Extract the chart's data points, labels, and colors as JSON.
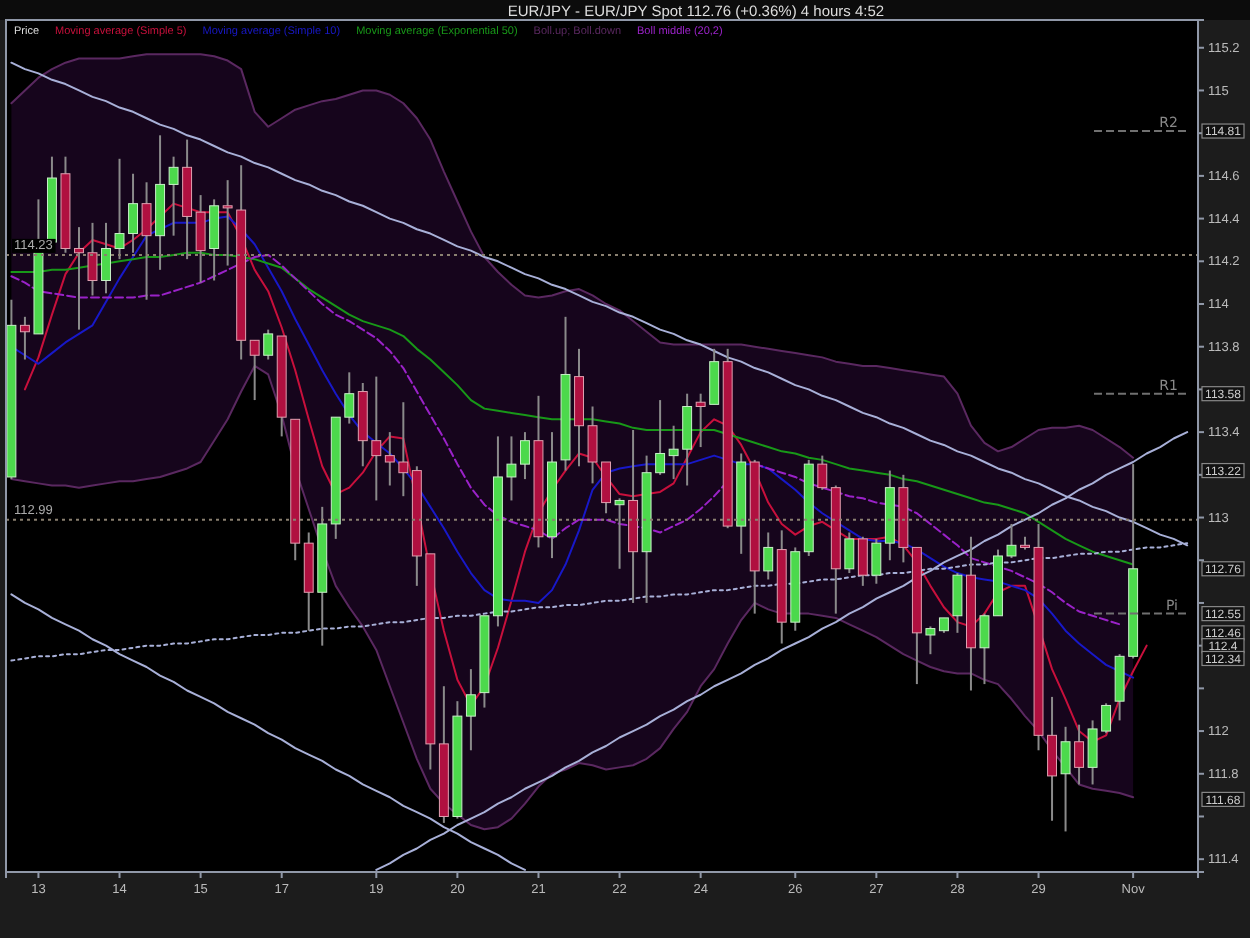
{
  "chart_data": {
    "type": "candlestick",
    "title": "EUR/JPY - EUR/JPY Spot    112.76 (+0.36%)    4 hours  4:52",
    "legend": "top left",
    "marker": "none",
    "categories": [
      null,
      null,
      "13",
      null,
      null,
      null,
      null,
      null,
      "14",
      null,
      null,
      null,
      null,
      null,
      "15",
      null,
      null,
      null,
      null,
      null,
      "17",
      null,
      null,
      null,
      null,
      null,
      null,
      "19",
      null,
      null,
      null,
      null,
      null,
      "20",
      null,
      null,
      null,
      null,
      null,
      "21",
      null,
      null,
      null,
      null,
      null,
      "22",
      null,
      null,
      null,
      null,
      null,
      "24",
      null,
      null,
      null,
      null,
      null,
      null,
      "26",
      null,
      null,
      null,
      null,
      null,
      "27",
      null,
      null,
      null,
      null,
      null,
      "28",
      null,
      null,
      null,
      null,
      null,
      "29",
      null,
      null,
      null,
      null,
      null,
      null,
      "Nov",
      null,
      null,
      null,
      null
    ],
    "ylim": [
      111.34,
      115.33
    ],
    "yticks": [
      115.2,
      115,
      {
        "value": 114.8,
        "label": null
      },
      114.6,
      114.4,
      114.2,
      114,
      113.8,
      {
        "value": 113.6,
        "label": null
      },
      113.4,
      {
        "value": 113.2,
        "label": null
      },
      113,
      {
        "value": 112.8,
        "label": null
      },
      {
        "value": 112.6,
        "label": null
      },
      {
        "value": 112.4,
        "label": null
      },
      {
        "value": 112.2,
        "label": null
      },
      112,
      111.8,
      {
        "value": 111.6,
        "label": null
      },
      111.4
    ],
    "ref_lines": [
      {
        "axis": "y",
        "value": 114.23,
        "label": "114.23",
        "line_style": "dotted",
        "color": "#8a8070"
      },
      {
        "axis": "y",
        "value": 112.99,
        "label": "112.99",
        "line_style": "dotted",
        "color": "#8a8070"
      },
      {
        "axis": "y",
        "value": 114.81,
        "label": "R2",
        "line_style": "dashed",
        "color": "#707070"
      },
      {
        "axis": "y",
        "value": 113.58,
        "label": "R1",
        "line_style": "dashed",
        "color": "#707070"
      },
      {
        "axis": "y",
        "value": 112.55,
        "label": "Pi",
        "line_style": "dashed",
        "color": "#707070"
      }
    ],
    "annotations": [
      {
        "text": "114.81",
        "y": 114.81
      },
      {
        "text": "113.58",
        "y": 113.58
      },
      {
        "text": "113.22",
        "y": 113.22
      },
      {
        "text": "112.76",
        "y": 112.76
      },
      {
        "text": "112.55",
        "y": 112.55
      },
      {
        "text": "112.46",
        "y": 112.46
      },
      {
        "text": "112.4",
        "y": 112.4
      },
      {
        "text": "112.34",
        "y": 112.34
      },
      {
        "text": "111.68",
        "y": 111.68
      }
    ],
    "series": [
      {
        "type": "candlestick",
        "name": "Price",
        "ohlc": [
          [
            113.19,
            114.02,
            113.18,
            113.9
          ],
          [
            113.9,
            113.94,
            113.74,
            113.87
          ],
          [
            113.86,
            114.49,
            113.86,
            114.29
          ],
          [
            114.29,
            114.69,
            114.28,
            114.59
          ],
          [
            114.61,
            114.69,
            114.24,
            114.26
          ],
          [
            114.26,
            114.36,
            113.88,
            114.24
          ],
          [
            114.24,
            114.38,
            114.04,
            114.11
          ],
          [
            114.11,
            114.38,
            114.05,
            114.26
          ],
          [
            114.26,
            114.68,
            114.21,
            114.33
          ],
          [
            114.33,
            114.61,
            114.24,
            114.47
          ],
          [
            114.47,
            114.57,
            114.02,
            114.32
          ],
          [
            114.32,
            114.79,
            114.16,
            114.56
          ],
          [
            114.56,
            114.69,
            114.32,
            114.64
          ],
          [
            114.64,
            114.77,
            114.21,
            114.41
          ],
          [
            114.43,
            114.51,
            114.1,
            114.25
          ],
          [
            114.26,
            114.49,
            114.11,
            114.46
          ],
          [
            114.46,
            114.58,
            114.18,
            114.45
          ],
          [
            114.44,
            114.65,
            113.74,
            113.83
          ],
          [
            113.83,
            113.83,
            113.55,
            113.76
          ],
          [
            113.76,
            113.88,
            113.74,
            113.86
          ],
          [
            113.85,
            113.85,
            113.38,
            113.47
          ],
          [
            113.46,
            113.46,
            112.8,
            112.88
          ],
          [
            112.88,
            112.93,
            112.47,
            112.65
          ],
          [
            112.65,
            113.05,
            112.4,
            112.97
          ],
          [
            112.97,
            113.47,
            112.9,
            113.47
          ],
          [
            113.47,
            113.68,
            113.44,
            113.58
          ],
          [
            113.59,
            113.63,
            113.24,
            113.36
          ],
          [
            113.36,
            113.66,
            113.08,
            113.29
          ],
          [
            113.29,
            113.4,
            113.15,
            113.26
          ],
          [
            113.26,
            113.54,
            113.1,
            113.21
          ],
          [
            113.22,
            113.24,
            112.68,
            112.82
          ],
          [
            112.83,
            112.83,
            111.82,
            111.94
          ],
          [
            111.94,
            112.21,
            111.57,
            111.6
          ],
          [
            111.6,
            112.14,
            111.59,
            112.07
          ],
          [
            112.07,
            112.29,
            111.91,
            112.17
          ],
          [
            112.18,
            112.54,
            112.11,
            112.54
          ],
          [
            112.54,
            113.38,
            112.49,
            113.19
          ],
          [
            113.19,
            113.38,
            113.08,
            113.25
          ],
          [
            113.25,
            113.4,
            113.18,
            113.36
          ],
          [
            113.36,
            113.57,
            112.86,
            112.91
          ],
          [
            112.91,
            113.4,
            112.81,
            113.26
          ],
          [
            113.27,
            113.94,
            113.22,
            113.67
          ],
          [
            113.66,
            113.79,
            113.24,
            113.43
          ],
          [
            113.43,
            113.52,
            113.16,
            113.26
          ],
          [
            113.26,
            113.26,
            113.02,
            113.07
          ],
          [
            113.06,
            113.09,
            112.76,
            113.08
          ],
          [
            113.08,
            113.41,
            112.6,
            112.84
          ],
          [
            112.84,
            113.29,
            112.6,
            113.21
          ],
          [
            113.21,
            113.55,
            113.2,
            113.3
          ],
          [
            113.29,
            113.43,
            113.18,
            113.32
          ],
          [
            113.32,
            113.58,
            113.15,
            113.52
          ],
          [
            113.54,
            113.58,
            113.33,
            113.52
          ],
          [
            113.53,
            113.79,
            113.53,
            113.73
          ],
          [
            113.73,
            113.79,
            112.95,
            112.96
          ],
          [
            112.96,
            113.3,
            112.83,
            113.26
          ],
          [
            113.26,
            113.27,
            112.55,
            112.75
          ],
          [
            112.75,
            112.93,
            112.71,
            112.86
          ],
          [
            112.85,
            112.94,
            112.41,
            112.51
          ],
          [
            112.51,
            112.86,
            112.47,
            112.84
          ],
          [
            112.84,
            113.27,
            112.82,
            113.25
          ],
          [
            113.25,
            113.29,
            113.13,
            113.14
          ],
          [
            113.14,
            113.15,
            112.55,
            112.76
          ],
          [
            112.76,
            112.93,
            112.74,
            112.9
          ],
          [
            112.9,
            112.91,
            112.68,
            112.73
          ],
          [
            112.73,
            112.9,
            112.69,
            112.88
          ],
          [
            112.88,
            113.22,
            112.8,
            113.14
          ],
          [
            113.14,
            113.2,
            112.79,
            112.86
          ],
          [
            112.86,
            112.86,
            112.22,
            112.46
          ],
          [
            112.45,
            112.49,
            112.36,
            112.48
          ],
          [
            112.47,
            112.53,
            112.46,
            112.53
          ],
          [
            112.54,
            112.74,
            112.46,
            112.73
          ],
          [
            112.73,
            112.91,
            112.19,
            112.39
          ],
          [
            112.39,
            112.55,
            112.22,
            112.54
          ],
          [
            112.54,
            112.85,
            112.54,
            112.82
          ],
          [
            112.82,
            112.97,
            112.81,
            112.87
          ],
          [
            112.87,
            112.91,
            112.85,
            112.86
          ],
          [
            112.86,
            112.97,
            111.91,
            111.98
          ],
          [
            111.98,
            112.16,
            111.58,
            111.79
          ],
          [
            111.8,
            112.02,
            111.53,
            111.95
          ],
          [
            111.95,
            112.03,
            111.75,
            111.83
          ],
          [
            111.83,
            112.05,
            111.75,
            112.01
          ],
          [
            112.0,
            112.13,
            111.99,
            112.12
          ],
          [
            112.14,
            112.36,
            112.05,
            112.35
          ],
          [
            112.35,
            113.25,
            112.34,
            112.76
          ],
          null,
          null,
          null,
          null
        ]
      },
      {
        "type": "line",
        "name": "Moving average (Simple 5)",
        "color": "#c8103c",
        "line_style": "solid",
        "values": [
          null,
          113.6,
          113.75,
          113.95,
          114.14,
          114.24,
          114.3,
          114.28,
          114.26,
          114.3,
          114.35,
          114.41,
          114.47,
          114.45,
          114.43,
          114.43,
          114.43,
          114.31,
          114.16,
          114.06,
          113.89,
          113.69,
          113.46,
          113.24,
          113.11,
          113.14,
          113.21,
          113.31,
          113.38,
          113.37,
          113.07,
          112.75,
          112.47,
          112.24,
          112.12,
          112.21,
          112.39,
          112.61,
          112.84,
          113.02,
          113.13,
          113.22,
          113.3,
          113.28,
          113.19,
          113.11,
          113.1,
          113.11,
          113.12,
          113.16,
          113.28,
          113.4,
          113.46,
          113.43,
          113.34,
          113.22,
          113.07,
          112.97,
          112.92,
          112.96,
          112.98,
          112.94,
          112.9,
          112.9,
          112.9,
          112.91,
          112.87,
          112.79,
          112.68,
          112.58,
          112.51,
          112.49,
          112.55,
          112.65,
          112.68,
          112.68,
          112.49,
          112.29,
          112.15,
          112.0,
          111.95,
          111.98,
          112.15,
          112.28,
          112.4,
          null,
          null,
          null
        ]
      },
      {
        "type": "line",
        "name": "Moving average (Simple 10)",
        "color": "#1818c8",
        "line_style": "solid",
        "values": [
          113.8,
          113.76,
          113.72,
          113.77,
          113.82,
          113.86,
          113.9,
          114.01,
          114.12,
          114.22,
          114.32,
          114.35,
          114.38,
          114.38,
          114.38,
          114.4,
          114.41,
          114.35,
          114.28,
          114.17,
          114.06,
          113.93,
          113.81,
          113.69,
          113.58,
          113.48,
          113.4,
          113.35,
          113.3,
          113.23,
          113.15,
          113.05,
          112.95,
          112.84,
          112.74,
          112.66,
          112.62,
          112.61,
          112.61,
          112.6,
          112.66,
          112.78,
          112.94,
          113.13,
          113.21,
          113.23,
          113.24,
          113.25,
          113.25,
          113.25,
          113.25,
          113.27,
          113.29,
          113.27,
          113.25,
          113.25,
          113.23,
          113.18,
          113.13,
          113.07,
          113.02,
          112.98,
          112.94,
          112.9,
          112.89,
          112.89,
          112.88,
          112.85,
          112.81,
          112.77,
          112.74,
          112.72,
          112.71,
          112.7,
          112.68,
          112.66,
          112.62,
          112.55,
          112.47,
          112.41,
          112.36,
          112.31,
          112.28,
          112.25,
          null,
          null,
          null,
          null
        ]
      },
      {
        "type": "line",
        "name": "Moving average (Exponential 50)",
        "color": "#189818",
        "line_style": "solid",
        "values": [
          114.15,
          114.15,
          114.15,
          114.16,
          114.16,
          114.17,
          114.18,
          114.19,
          114.2,
          114.21,
          114.22,
          114.22,
          114.23,
          114.24,
          114.24,
          114.23,
          114.23,
          114.22,
          114.21,
          114.19,
          114.17,
          114.12,
          114.07,
          114.03,
          113.99,
          113.95,
          113.92,
          113.9,
          113.88,
          113.85,
          113.79,
          113.74,
          113.68,
          113.62,
          113.55,
          113.51,
          113.5,
          113.49,
          113.48,
          113.47,
          113.46,
          113.46,
          113.46,
          113.46,
          113.45,
          113.44,
          113.42,
          113.41,
          113.41,
          113.41,
          113.41,
          113.41,
          113.41,
          113.39,
          113.37,
          113.35,
          113.33,
          113.31,
          113.3,
          113.28,
          113.27,
          113.25,
          113.23,
          113.22,
          113.21,
          113.2,
          113.18,
          113.17,
          113.15,
          113.13,
          113.11,
          113.09,
          113.07,
          113.06,
          113.04,
          113.02,
          112.98,
          112.94,
          112.9,
          112.87,
          112.84,
          112.82,
          112.8,
          112.78,
          null,
          null,
          null,
          null
        ]
      },
      {
        "type": "line",
        "name": "Boll.up; Boll.down",
        "color": "#5a2860",
        "line_style": "solid",
        "values": [
          114.94,
          115.0,
          115.06,
          115.1,
          115.13,
          115.15,
          115.15,
          115.15,
          115.15,
          115.16,
          115.17,
          115.17,
          115.17,
          115.17,
          115.17,
          115.16,
          115.14,
          115.1,
          114.9,
          114.83,
          114.87,
          114.91,
          114.93,
          114.95,
          114.96,
          114.98,
          115.0,
          115.0,
          114.98,
          114.94,
          114.87,
          114.77,
          114.62,
          114.48,
          114.34,
          114.22,
          114.15,
          114.09,
          114.04,
          114.03,
          114.04,
          114.06,
          114.07,
          114.04,
          114.0,
          113.97,
          113.92,
          113.87,
          113.82,
          113.81,
          113.81,
          113.81,
          113.81,
          113.81,
          113.81,
          113.8,
          113.79,
          113.78,
          113.77,
          113.76,
          113.75,
          113.73,
          113.72,
          113.71,
          113.71,
          113.7,
          113.69,
          113.68,
          113.67,
          113.66,
          113.58,
          113.43,
          113.35,
          113.31,
          113.33,
          113.37,
          113.41,
          113.42,
          113.42,
          113.43,
          113.41,
          113.37,
          113.33,
          113.28,
          null,
          null,
          null,
          null
        ],
        "marker": "none"
      },
      {
        "type": "line",
        "color": "#5a2860",
        "line_style": "solid",
        "values": [
          113.18,
          113.17,
          113.16,
          113.15,
          113.15,
          113.14,
          113.15,
          113.16,
          113.17,
          113.17,
          113.18,
          113.19,
          113.21,
          113.23,
          113.26,
          113.36,
          113.46,
          113.59,
          113.71,
          113.67,
          113.48,
          113.23,
          113.04,
          112.85,
          112.68,
          112.58,
          112.49,
          112.38,
          112.21,
          112.04,
          111.87,
          111.73,
          111.66,
          111.61,
          111.56,
          111.54,
          111.55,
          111.59,
          111.66,
          111.74,
          111.8,
          111.82,
          111.85,
          111.84,
          111.82,
          111.83,
          111.84,
          111.87,
          111.92,
          112.01,
          112.09,
          112.21,
          112.29,
          112.41,
          112.52,
          112.6,
          112.57,
          112.55,
          112.55,
          112.55,
          112.54,
          112.53,
          112.5,
          112.47,
          112.44,
          112.4,
          112.36,
          112.33,
          112.3,
          112.28,
          112.27,
          112.27,
          112.24,
          112.22,
          112.15,
          112.07,
          112.0,
          111.91,
          111.83,
          111.75,
          111.73,
          111.72,
          111.71,
          111.69,
          null,
          null,
          null,
          null
        ]
      },
      {
        "type": "line",
        "name": "Boll middle (20,2)",
        "color": "#9a22c8",
        "line_style": "dashed",
        "upper": [
          114.94,
          115.0,
          115.06,
          115.1,
          115.13,
          115.15,
          115.15,
          115.15,
          115.15,
          115.16,
          115.17,
          115.17,
          115.17,
          115.17,
          115.17,
          115.16,
          115.14,
          115.1,
          114.9,
          114.83,
          114.87,
          114.91,
          114.93,
          114.95,
          114.96,
          114.98,
          115.0,
          115.0,
          114.98,
          114.94,
          114.87,
          114.77,
          114.62,
          114.48,
          114.34,
          114.22,
          114.15,
          114.09,
          114.04,
          114.03,
          114.04,
          114.06,
          114.07,
          114.04,
          114.0,
          113.97,
          113.92,
          113.87,
          113.82,
          113.81,
          113.81,
          113.81,
          113.81,
          113.81,
          113.81,
          113.8,
          113.79,
          113.78,
          113.77,
          113.76,
          113.75,
          113.73,
          113.72,
          113.71,
          113.71,
          113.7,
          113.69,
          113.68,
          113.67,
          113.66,
          113.58,
          113.43,
          113.35,
          113.31,
          113.33,
          113.37,
          113.41,
          113.42,
          113.42,
          113.43,
          113.41,
          113.37,
          113.33,
          113.28,
          null,
          null,
          null,
          null
        ],
        "lower": [
          113.18,
          113.17,
          113.16,
          113.15,
          113.15,
          113.14,
          113.15,
          113.16,
          113.17,
          113.17,
          113.18,
          113.19,
          113.21,
          113.23,
          113.26,
          113.36,
          113.46,
          113.59,
          113.71,
          113.67,
          113.48,
          113.23,
          113.04,
          112.85,
          112.68,
          112.58,
          112.49,
          112.38,
          112.21,
          112.04,
          111.87,
          111.73,
          111.66,
          111.61,
          111.56,
          111.54,
          111.55,
          111.59,
          111.66,
          111.74,
          111.8,
          111.82,
          111.85,
          111.84,
          111.82,
          111.83,
          111.84,
          111.87,
          111.92,
          112.01,
          112.09,
          112.21,
          112.29,
          112.41,
          112.52,
          112.6,
          112.57,
          112.55,
          112.55,
          112.55,
          112.54,
          112.53,
          112.5,
          112.47,
          112.44,
          112.4,
          112.36,
          112.33,
          112.3,
          112.28,
          112.27,
          112.27,
          112.24,
          112.22,
          112.15,
          112.07,
          112.0,
          111.91,
          111.83,
          111.75,
          111.73,
          111.72,
          111.71,
          111.69,
          null,
          null,
          null,
          null
        ],
        "values": [
          114.13,
          114.1,
          114.06,
          114.05,
          114.04,
          114.03,
          114.03,
          114.03,
          114.03,
          114.03,
          114.04,
          114.04,
          114.06,
          114.08,
          114.1,
          114.13,
          114.16,
          114.19,
          114.22,
          114.23,
          114.18,
          114.12,
          114.06,
          114.0,
          113.95,
          113.92,
          113.88,
          113.84,
          113.78,
          113.7,
          113.59,
          113.48,
          113.37,
          113.25,
          113.14,
          113.06,
          113.01,
          112.98,
          112.96,
          112.94,
          112.9,
          112.95,
          112.99,
          112.99,
          112.99,
          112.97,
          112.96,
          112.95,
          112.93,
          112.96,
          112.99,
          113.04,
          113.1,
          113.17,
          null,
          113.25,
          113.23,
          113.21,
          113.19,
          113.16,
          113.14,
          113.12,
          113.1,
          113.09,
          113.07,
          113.06,
          113.05,
          113.02,
          112.97,
          112.92,
          112.87,
          112.81,
          112.79,
          112.77,
          112.75,
          112.72,
          112.69,
          112.65,
          112.6,
          112.56,
          112.54,
          112.52,
          112.5,
          null,
          null,
          null,
          null,
          null
        ]
      },
      {
        "type": "line",
        "color": "#a8b0d8",
        "line_style": "solid",
        "values": [
          115.13,
          115.1,
          115.08,
          115.05,
          115.03,
          115.0,
          114.97,
          114.95,
          114.92,
          114.9,
          114.87,
          114.84,
          114.82,
          114.79,
          114.77,
          114.74,
          114.71,
          114.69,
          114.66,
          114.64,
          114.61,
          114.58,
          114.56,
          114.53,
          114.51,
          114.48,
          114.46,
          114.43,
          114.4,
          114.38,
          114.35,
          114.33,
          114.3,
          114.27,
          114.25,
          114.22,
          114.2,
          114.17,
          114.14,
          114.12,
          114.09,
          114.07,
          114.04,
          114.01,
          113.99,
          113.96,
          113.94,
          113.91,
          113.88,
          113.86,
          113.83,
          113.81,
          113.78,
          113.75,
          113.73,
          113.7,
          113.68,
          113.65,
          113.62,
          113.6,
          113.57,
          113.55,
          113.52,
          113.49,
          113.47,
          113.44,
          113.42,
          113.39,
          113.36,
          113.34,
          113.31,
          113.29,
          113.26,
          113.23,
          113.21,
          113.18,
          113.16,
          113.13,
          113.1,
          113.08,
          113.05,
          113.03,
          113.0,
          112.98,
          112.95,
          112.92,
          112.9,
          112.87
        ]
      },
      {
        "type": "line",
        "color": "#a8b0d8",
        "line_style": "solid",
        "values": [
          112.64,
          112.6,
          112.57,
          112.53,
          112.5,
          112.47,
          112.43,
          112.4,
          112.36,
          112.33,
          112.3,
          112.26,
          112.23,
          112.19,
          112.16,
          112.13,
          112.09,
          112.06,
          112.03,
          111.99,
          111.96,
          111.92,
          111.89,
          111.86,
          111.82,
          111.79,
          111.75,
          111.72,
          111.69,
          111.65,
          111.62,
          111.59,
          111.55,
          111.52,
          111.48,
          111.45,
          111.42,
          111.38,
          111.35,
          null,
          null,
          null,
          null,
          null,
          null,
          null,
          null,
          null,
          null,
          null,
          null,
          null,
          null,
          null,
          null,
          null,
          null,
          null,
          null,
          null,
          null,
          null,
          null,
          null,
          null,
          null,
          null,
          null,
          null,
          null,
          null,
          null,
          null,
          null,
          null,
          null,
          null,
          null,
          null,
          null,
          null,
          null,
          null,
          null,
          null,
          null,
          null,
          null
        ]
      },
      {
        "type": "line",
        "color": "#a8b0d8",
        "line_style": "solid",
        "values": [
          null,
          null,
          null,
          null,
          null,
          null,
          null,
          null,
          null,
          null,
          null,
          null,
          null,
          null,
          null,
          null,
          null,
          null,
          null,
          null,
          null,
          null,
          null,
          null,
          null,
          null,
          null,
          111.35,
          111.38,
          111.42,
          111.45,
          111.49,
          111.52,
          111.56,
          111.59,
          111.62,
          111.66,
          111.69,
          111.73,
          111.76,
          111.79,
          111.83,
          111.86,
          111.9,
          111.93,
          111.97,
          112.0,
          112.03,
          112.07,
          112.1,
          112.14,
          112.17,
          112.21,
          112.24,
          112.27,
          112.31,
          112.34,
          112.38,
          112.41,
          112.44,
          112.48,
          112.51,
          112.55,
          112.58,
          112.62,
          112.65,
          112.68,
          112.72,
          112.75,
          112.79,
          112.82,
          112.85,
          112.89,
          112.92,
          112.96,
          112.99,
          113.02,
          113.06,
          113.09,
          113.13,
          113.16,
          113.2,
          113.23,
          113.26,
          113.3,
          113.33,
          113.37,
          113.4
        ]
      },
      {
        "type": "line",
        "color": "#a8b0d8",
        "line_style": "dotted",
        "values": [
          112.33,
          112.34,
          112.35,
          112.35,
          112.36,
          112.36,
          112.37,
          112.38,
          112.38,
          112.39,
          112.4,
          112.4,
          112.41,
          112.41,
          112.42,
          112.43,
          112.43,
          112.44,
          112.45,
          112.45,
          112.46,
          112.46,
          112.47,
          112.48,
          112.48,
          112.49,
          112.49,
          112.5,
          112.51,
          112.51,
          112.52,
          112.53,
          112.53,
          112.54,
          112.54,
          112.55,
          112.56,
          112.56,
          112.57,
          112.58,
          112.58,
          112.59,
          112.59,
          112.6,
          112.61,
          112.61,
          112.62,
          112.63,
          112.63,
          112.64,
          112.64,
          112.65,
          112.66,
          112.66,
          112.67,
          112.68,
          112.68,
          112.69,
          112.69,
          112.7,
          112.71,
          112.71,
          112.72,
          112.73,
          112.73,
          112.74,
          112.74,
          112.75,
          112.76,
          112.76,
          112.77,
          112.78,
          112.78,
          112.79,
          112.79,
          112.8,
          112.81,
          112.81,
          112.82,
          112.83,
          112.83,
          112.84,
          112.84,
          112.85,
          112.86,
          112.86,
          112.87,
          112.88
        ]
      }
    ]
  }
}
